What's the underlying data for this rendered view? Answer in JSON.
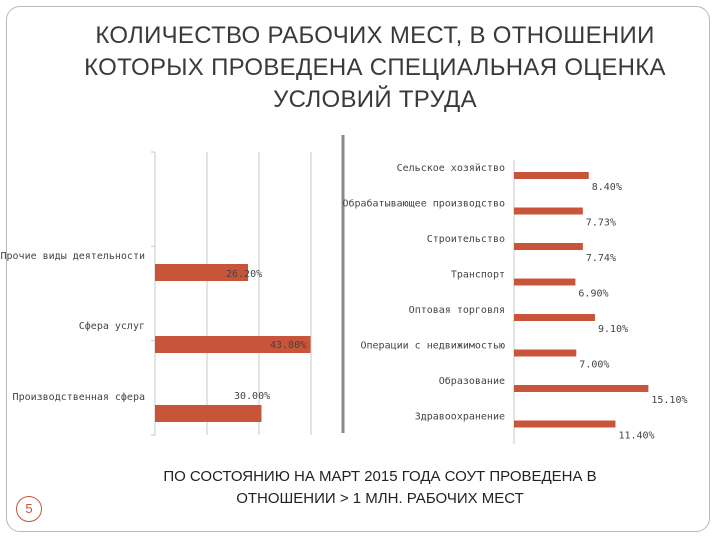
{
  "title_lines": [
    "КОЛИЧЕСТВО РАБОЧИХ МЕСТ, В ОТНОШЕНИИ",
    "КОТОРЫХ ПРОВЕДЕНА СПЕЦИАЛЬНАЯ ОЦЕНКА",
    "УСЛОВИЙ ТРУДА"
  ],
  "footer_lines": [
    "ПО СОСТОЯНИЮ НА МАРТ 2015 ГОДА СОУТ ПРОВЕДЕНА В",
    "ОТНОШЕНИИ > 1 МЛН. РАБОЧИХ МЕСТ"
  ],
  "page_number": "5",
  "colors": {
    "bar": "#c8553a",
    "grid": "#c8c8c8",
    "separator": "#8a8a8a"
  },
  "chart_data": [
    {
      "type": "bar",
      "orientation": "horizontal",
      "categories": [
        "Прочие виды деятельности",
        "Сфера услуг",
        "Производственная сфера"
      ],
      "values": [
        26.2,
        43.8,
        30.0
      ],
      "value_labels": [
        "26.20%",
        "43.80%",
        "30.00%"
      ],
      "unit": "%",
      "grid": true
    },
    {
      "type": "bar",
      "orientation": "horizontal",
      "categories": [
        "Сельское хозяйство",
        "Обрабатывающее производство",
        "Строительство",
        "Транспорт",
        "Оптовая торговля",
        "Операции с недвижимостью",
        "Образование",
        "Здравоохранение"
      ],
      "values": [
        8.4,
        7.73,
        7.74,
        6.9,
        9.1,
        7.0,
        15.1,
        11.4
      ],
      "value_labels": [
        "8.40%",
        "7.73%",
        "7.74%",
        "6.90%",
        "9.10%",
        "7.00%",
        "15.10%",
        "11.40%"
      ],
      "unit": "%",
      "grid": false
    }
  ]
}
